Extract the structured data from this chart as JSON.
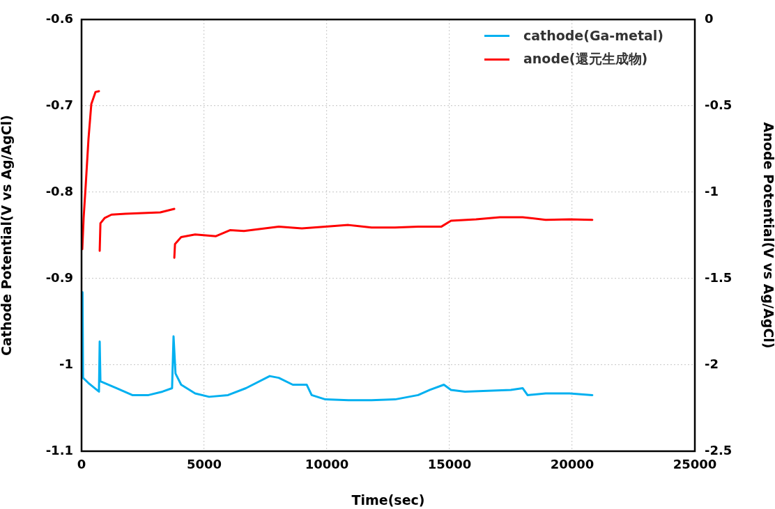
{
  "chart_data": {
    "type": "line",
    "xlabel": "Time(sec)",
    "ylabel": "Cathode Potential(V vs Ag/AgCl)",
    "y2label": "Anode Potential(V vs Ag/AgCl)",
    "xlim": [
      0,
      25000
    ],
    "xticks": [
      0,
      5000,
      10000,
      15000,
      20000,
      25000
    ],
    "ylim": [
      -1.1,
      -0.6
    ],
    "yticks": [
      -1.1,
      -1,
      -0.9,
      -0.8,
      -0.7,
      -0.6
    ],
    "y2lim": [
      -2.5,
      0
    ],
    "y2ticks": [
      -2.5,
      -2,
      -1.5,
      -1,
      -0.5,
      0
    ],
    "grid": true,
    "legend": "top right",
    "marker": "none",
    "line_style": "solid",
    "series": [
      {
        "name": "cathode(Ga-metal)",
        "color": "#00b0f0",
        "x": [
          40,
          60,
          280,
          710,
          740,
          770,
          1420,
          2070,
          2730,
          3300,
          3690,
          3750,
          3830,
          4060,
          4630,
          5200,
          5970,
          6700,
          7670,
          8040,
          8610,
          9180,
          9380,
          9940,
          10880,
          11820,
          12780,
          13720,
          14200,
          14770,
          15060,
          15630,
          16560,
          17500,
          17980,
          18180,
          18920,
          19890,
          20820
        ],
        "values": [
          -0.916,
          -1.015,
          -1.021,
          -1.031,
          -0.973,
          -1.019,
          -1.027,
          -1.035,
          -1.035,
          -1.031,
          -1.027,
          -0.967,
          -1.01,
          -1.023,
          -1.033,
          -1.037,
          -1.035,
          -1.027,
          -1.013,
          -1.015,
          -1.023,
          -1.023,
          -1.035,
          -1.04,
          -1.041,
          -1.041,
          -1.04,
          -1.035,
          -1.029,
          -1.023,
          -1.029,
          -1.031,
          -1.03,
          -1.029,
          -1.027,
          -1.035,
          -1.033,
          -1.033,
          -1.035
        ]
      },
      {
        "name": "anode(還元生成物)",
        "color": "#ff0000",
        "axis": "y2",
        "x": [
          30,
          85,
          170,
          284,
          398,
          568,
          710,
          725,
          740,
          770,
          940,
          1220,
          1790,
          3210,
          3780,
          3781,
          3782,
          3810,
          4060,
          4630,
          5480,
          6050,
          6620,
          7470,
          8040,
          8980,
          9940,
          10880,
          11820,
          12780,
          13720,
          14660,
          15060,
          16080,
          17050,
          17980,
          18920,
          19890,
          20820
        ],
        "values": [
          -1.33,
          -1.15,
          -0.96,
          -0.69,
          -0.49,
          -0.42,
          -0.415,
          null,
          -1.34,
          -1.18,
          -1.15,
          -1.13,
          -1.125,
          -1.117,
          -1.097,
          null,
          -1.38,
          -1.3,
          -1.26,
          -1.245,
          -1.255,
          -1.22,
          -1.225,
          -1.21,
          -1.2,
          -1.21,
          -1.2,
          -1.19,
          -1.205,
          -1.205,
          -1.2,
          -1.2,
          -1.165,
          -1.157,
          -1.145,
          -1.145,
          -1.16,
          -1.157,
          -1.16
        ]
      }
    ]
  }
}
